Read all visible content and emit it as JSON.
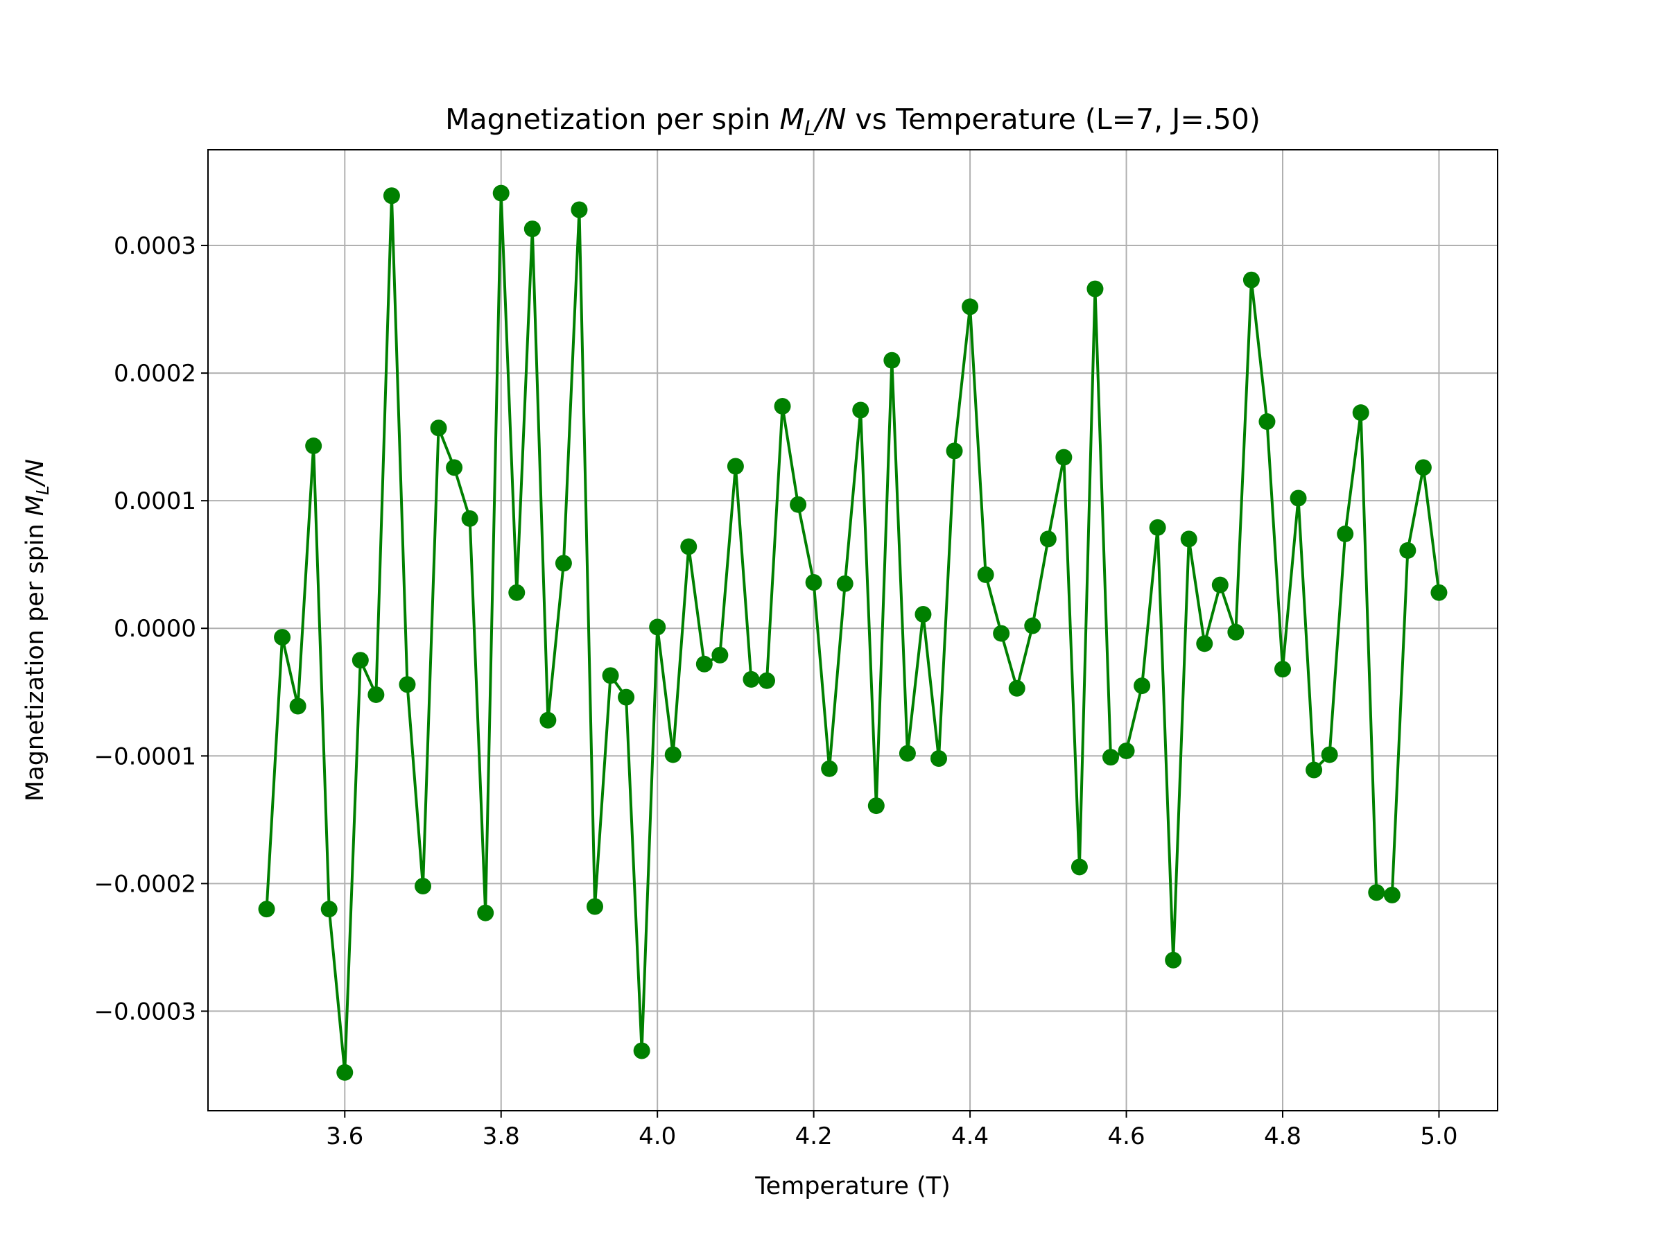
{
  "chart_data": {
    "type": "line",
    "title": "Magnetization per spin M_L/N vs Temperature (L=7, J=.50)",
    "title_parts": {
      "prefix": "Magnetization per spin ",
      "math_main": "M",
      "math_sub": "L",
      "math_rest": "/N",
      "suffix": " vs Temperature (L=7, J=.50)"
    },
    "xlabel": "Temperature (T)",
    "ylabel": "Magnetization per spin M_L/N",
    "ylabel_parts": {
      "prefix": "Magnetization per spin ",
      "math_main": "M",
      "math_sub": "L",
      "math_rest": "/N"
    },
    "xlim": [
      3.425,
      5.075
    ],
    "ylim": [
      -0.000378,
      0.000375
    ],
    "x_ticks": [
      3.6,
      3.8,
      4.0,
      4.2,
      4.4,
      4.6,
      4.8,
      5.0
    ],
    "x_tick_labels": [
      "3.6",
      "3.8",
      "4.0",
      "4.2",
      "4.4",
      "4.6",
      "4.8",
      "5.0"
    ],
    "y_ticks": [
      -0.0003,
      -0.0002,
      -0.0001,
      0.0,
      0.0001,
      0.0002,
      0.0003
    ],
    "y_tick_labels": [
      "−0.0003",
      "−0.0002",
      "−0.0001",
      "0.0000",
      "0.0001",
      "0.0002",
      "0.0003"
    ],
    "grid": true,
    "legend": "none",
    "series": [
      {
        "color": "#008000",
        "marker": "circle",
        "x": [
          3.5,
          3.52,
          3.54,
          3.56,
          3.58,
          3.6,
          3.62,
          3.64,
          3.66,
          3.68,
          3.7,
          3.72,
          3.74,
          3.76,
          3.78,
          3.8,
          3.82,
          3.84,
          3.86,
          3.88,
          3.9,
          3.92,
          3.94,
          3.96,
          3.98,
          4.0,
          4.02,
          4.04,
          4.06,
          4.08,
          4.1,
          4.12,
          4.14,
          4.16,
          4.18,
          4.2,
          4.22,
          4.24,
          4.26,
          4.28,
          4.3,
          4.32,
          4.34,
          4.36,
          4.38,
          4.4,
          4.42,
          4.44,
          4.46,
          4.48,
          4.5,
          4.52,
          4.54,
          4.56,
          4.58,
          4.6,
          4.62,
          4.64,
          4.66,
          4.68,
          4.7,
          4.72,
          4.74,
          4.76,
          4.78,
          4.8,
          4.82,
          4.84,
          4.86,
          4.88,
          4.9,
          4.92,
          4.94,
          4.96,
          4.98,
          5.0
        ],
        "y": [
          -0.00022,
          -7e-06,
          -6.1e-05,
          0.000143,
          -0.00022,
          -0.000348,
          -2.5e-05,
          -5.2e-05,
          0.000339,
          -4.4e-05,
          -0.000202,
          0.000157,
          0.000126,
          8.6e-05,
          -0.000223,
          0.000341,
          2.8e-05,
          0.000313,
          -7.2e-05,
          5.1e-05,
          0.000328,
          -0.000218,
          -3.7e-05,
          -5.4e-05,
          -0.000331,
          1e-06,
          -9.9e-05,
          6.4e-05,
          -2.8e-05,
          -2.1e-05,
          0.000127,
          -4e-05,
          -4.1e-05,
          0.000174,
          9.7e-05,
          3.6e-05,
          -0.00011,
          3.5e-05,
          0.000171,
          -0.000139,
          0.00021,
          -9.8e-05,
          1.1e-05,
          -0.000102,
          0.000139,
          0.000252,
          4.2e-05,
          -4e-06,
          -4.7e-05,
          2e-06,
          7e-05,
          0.000134,
          -0.000187,
          0.000266,
          -0.000101,
          -9.6e-05,
          -4.5e-05,
          7.9e-05,
          -0.00026,
          7e-05,
          -1.2e-05,
          3.4e-05,
          -3e-06,
          0.000273,
          0.000162,
          -3.2e-05,
          0.000102,
          -0.000111,
          -9.9e-05,
          7.4e-05,
          0.000169,
          -0.000207,
          -0.000209,
          6.1e-05,
          0.000126,
          2.8e-05
        ]
      }
    ]
  }
}
